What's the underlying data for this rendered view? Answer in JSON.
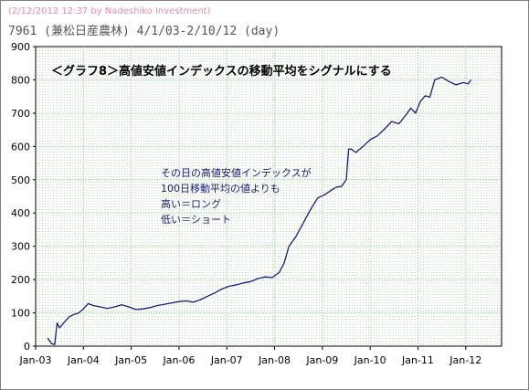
{
  "header": {
    "credit": "(2/12/2012 12:37 by Nadeshiko Investment)",
    "title": "7961 (兼松日産農林) 4/1/03-2/10/12 (day)"
  },
  "colors": {
    "credit": "#e88ab0",
    "line": "#1a1a7a",
    "grid": "#9ccf9c",
    "plot_bg": "#f4fff4"
  },
  "chart_data": {
    "type": "line",
    "title": "＜グラフ8＞高値安値インデックスの移動平均をシグナルにする",
    "annotation": [
      "その日の高値安値インデックスが",
      "100日移動平均の値よりも",
      "高い＝ロング",
      "低い＝ショート"
    ],
    "xlabel": "",
    "ylabel": "",
    "ylim": [
      0,
      900
    ],
    "xlim": [
      2003.0,
      2012.75
    ],
    "y_ticks": [
      "0",
      "100",
      "200",
      "300",
      "400",
      "500",
      "600",
      "700",
      "800",
      "900"
    ],
    "x_ticks": [
      "Jan-03",
      "Jan-04",
      "Jan-05",
      "Jan-06",
      "Jan-07",
      "Jan-08",
      "Jan-09",
      "Jan-10",
      "Jan-11",
      "Jan-12"
    ],
    "grid": true,
    "series": [
      {
        "name": "",
        "x": [
          2003.25,
          2003.33,
          2003.4,
          2003.45,
          2003.5,
          2003.6,
          2003.7,
          2003.8,
          2003.9,
          2004.0,
          2004.1,
          2004.2,
          2004.35,
          2004.5,
          2004.65,
          2004.8,
          2004.95,
          2005.1,
          2005.25,
          2005.4,
          2005.55,
          2005.7,
          2005.85,
          2006.0,
          2006.15,
          2006.3,
          2006.45,
          2006.6,
          2006.75,
          2006.9,
          2007.05,
          2007.2,
          2007.35,
          2007.5,
          2007.65,
          2007.8,
          2007.95,
          2008.1,
          2008.2,
          2008.3,
          2008.45,
          2008.6,
          2008.75,
          2008.9,
          2009.05,
          2009.2,
          2009.3,
          2009.4,
          2009.5,
          2009.55,
          2009.6,
          2009.7,
          2009.85,
          2010.0,
          2010.15,
          2010.3,
          2010.45,
          2010.6,
          2010.75,
          2010.85,
          2010.95,
          2011.05,
          2011.15,
          2011.25,
          2011.35,
          2011.5,
          2011.65,
          2011.8,
          2011.95,
          2012.05,
          2012.11
        ],
        "values": [
          25,
          8,
          5,
          70,
          55,
          72,
          88,
          95,
          100,
          112,
          128,
          122,
          118,
          113,
          118,
          124,
          118,
          110,
          112,
          116,
          122,
          126,
          130,
          134,
          136,
          132,
          140,
          150,
          160,
          172,
          180,
          184,
          190,
          194,
          203,
          208,
          206,
          222,
          250,
          300,
          330,
          370,
          410,
          445,
          455,
          470,
          478,
          480,
          500,
          592,
          592,
          582,
          600,
          620,
          632,
          652,
          675,
          668,
          695,
          715,
          700,
          735,
          752,
          748,
          800,
          808,
          795,
          785,
          792,
          788,
          800
        ]
      }
    ]
  }
}
